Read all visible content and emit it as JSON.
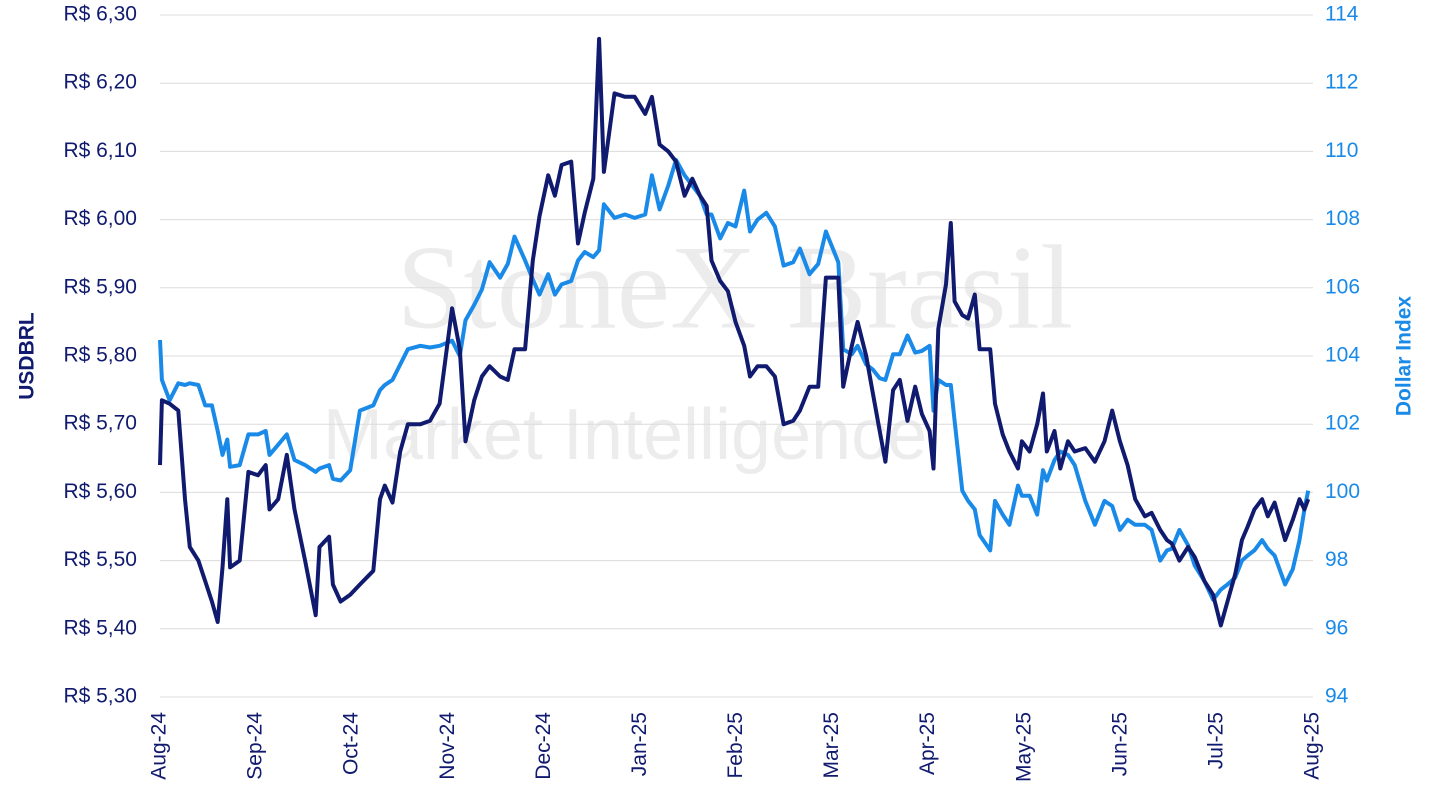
{
  "chart_data": {
    "type": "line",
    "watermark": [
      "StoneX Brasil",
      "Market Intelligence"
    ],
    "ylabel": "USDBRL",
    "y2label": "Dollar Index",
    "x": [
      0.0,
      0.02,
      0.1,
      0.19,
      0.26,
      0.31,
      0.4,
      0.47,
      0.54,
      0.6,
      0.65,
      0.7,
      0.73,
      0.83,
      0.92,
      1.02,
      1.1,
      1.14,
      1.23,
      1.32,
      1.4,
      1.51,
      1.62,
      1.66,
      1.76,
      1.8,
      1.88,
      1.98,
      2.08,
      2.22,
      2.29,
      2.34,
      2.42,
      2.5,
      2.58,
      2.71,
      2.81,
      2.91,
      3.04,
      3.12,
      3.18,
      3.27,
      3.35,
      3.43,
      3.54,
      3.62,
      3.69,
      3.8,
      3.88,
      3.95,
      4.04,
      4.11,
      4.18,
      4.28,
      4.35,
      4.42,
      4.51,
      4.57,
      4.62,
      4.73,
      4.84,
      4.94,
      5.05,
      5.12,
      5.2,
      5.29,
      5.37,
      5.46,
      5.54,
      5.62,
      5.69,
      5.74,
      5.83,
      5.91,
      5.99,
      6.08,
      6.14,
      6.22,
      6.31,
      6.4,
      6.49,
      6.59,
      6.66,
      6.76,
      6.85,
      6.93,
      7.06,
      7.11,
      7.2,
      7.26,
      7.35,
      7.42,
      7.49,
      7.55,
      7.63,
      7.7,
      7.78,
      7.86,
      7.93,
      8.01,
      8.05,
      8.1,
      8.18,
      8.23,
      8.27,
      8.35,
      8.41,
      8.48,
      8.53,
      8.64,
      8.69,
      8.77,
      8.84,
      8.93,
      8.97,
      9.05,
      9.13,
      9.19,
      9.23,
      9.31,
      9.37,
      9.45,
      9.52,
      9.63,
      9.73,
      9.83,
      9.91,
      9.99,
      10.07,
      10.15,
      10.25,
      10.32,
      10.41,
      10.48,
      10.53,
      10.61,
      10.7,
      10.77,
      10.87,
      10.96,
      11.04,
      11.11,
      11.19,
      11.26,
      11.32,
      11.39,
      11.47,
      11.53,
      11.6,
      11.71,
      11.79,
      11.86,
      11.91,
      11.95
    ],
    "xlim": [
      0,
      12
    ],
    "xticks": [
      {
        "value": 0,
        "label": "Aug-24"
      },
      {
        "value": 1,
        "label": "Sep-24"
      },
      {
        "value": 2,
        "label": "Oct-24"
      },
      {
        "value": 3,
        "label": "Nov-24"
      },
      {
        "value": 4,
        "label": "Dec-24"
      },
      {
        "value": 5,
        "label": "Jan-25"
      },
      {
        "value": 6,
        "label": "Feb-25"
      },
      {
        "value": 7,
        "label": "Mar-25"
      },
      {
        "value": 8,
        "label": "Apr-25"
      },
      {
        "value": 9,
        "label": "May-25"
      },
      {
        "value": 10,
        "label": "Jun-25"
      },
      {
        "value": 11,
        "label": "Jul-25"
      },
      {
        "value": 12,
        "label": "Aug-25"
      }
    ],
    "ylim": [
      5.3,
      6.3
    ],
    "yticks": [
      {
        "value": 5.3,
        "label": "R$ 5,30"
      },
      {
        "value": 5.4,
        "label": "R$ 5,40"
      },
      {
        "value": 5.5,
        "label": "R$ 5,50"
      },
      {
        "value": 5.6,
        "label": "R$ 5,60"
      },
      {
        "value": 5.7,
        "label": "R$ 5,70"
      },
      {
        "value": 5.8,
        "label": "R$ 5,80"
      },
      {
        "value": 5.9,
        "label": "R$ 5,90"
      },
      {
        "value": 6.0,
        "label": "R$ 6,00"
      },
      {
        "value": 6.1,
        "label": "R$ 6,10"
      },
      {
        "value": 6.2,
        "label": "R$ 6,20"
      },
      {
        "value": 6.3,
        "label": "R$ 6,30"
      }
    ],
    "y2lim": [
      94,
      114
    ],
    "y2ticks": [
      94,
      96,
      98,
      100,
      102,
      104,
      106,
      108,
      110,
      112,
      114
    ],
    "grid": true,
    "series": [
      {
        "name": "USDBRL",
        "color": "#101a6e",
        "axis": "y",
        "values": [
          5.64,
          5.735,
          5.73,
          5.72,
          5.59,
          5.52,
          5.5,
          5.47,
          5.44,
          5.41,
          5.49,
          5.59,
          5.49,
          5.5,
          5.63,
          5.625,
          5.64,
          5.575,
          5.59,
          5.655,
          5.575,
          5.5,
          5.42,
          5.52,
          5.535,
          5.465,
          5.44,
          5.45,
          5.465,
          5.485,
          5.59,
          5.61,
          5.585,
          5.66,
          5.7,
          5.7,
          5.705,
          5.73,
          5.87,
          5.81,
          5.675,
          5.735,
          5.77,
          5.785,
          5.77,
          5.765,
          5.81,
          5.81,
          5.94,
          6.005,
          6.065,
          6.035,
          6.08,
          6.085,
          5.965,
          6.01,
          6.06,
          6.265,
          6.07,
          6.185,
          6.18,
          6.18,
          6.155,
          6.18,
          6.11,
          6.1,
          6.085,
          6.035,
          6.06,
          6.035,
          6.02,
          5.94,
          5.91,
          5.895,
          5.85,
          5.815,
          5.77,
          5.785,
          5.785,
          5.77,
          5.7,
          5.705,
          5.72,
          5.755,
          5.755,
          5.915,
          5.915,
          5.755,
          5.815,
          5.85,
          5.8,
          5.745,
          5.69,
          5.645,
          5.75,
          5.765,
          5.705,
          5.755,
          5.715,
          5.69,
          5.635,
          5.84,
          5.905,
          5.995,
          5.88,
          5.86,
          5.855,
          5.89,
          5.81,
          5.81,
          5.73,
          5.685,
          5.66,
          5.635,
          5.675,
          5.66,
          5.7,
          5.745,
          5.66,
          5.69,
          5.635,
          5.675,
          5.66,
          5.665,
          5.645,
          5.675,
          5.72,
          5.675,
          5.64,
          5.59,
          5.565,
          5.57,
          5.545,
          5.53,
          5.525,
          5.5,
          5.52,
          5.505,
          5.47,
          5.45,
          5.405,
          5.44,
          5.48,
          5.53,
          5.55,
          5.575,
          5.59,
          5.565,
          5.585,
          5.53,
          5.56,
          5.59,
          5.575,
          5.59
        ]
      },
      {
        "name": "Dollar Index",
        "color": "#1a8ae8",
        "axis": "y2",
        "values": [
          104.47,
          103.3,
          102.7,
          103.2,
          103.15,
          103.2,
          103.15,
          102.55,
          102.55,
          101.8,
          101.1,
          101.55,
          100.75,
          100.8,
          101.7,
          101.7,
          101.8,
          101.1,
          101.4,
          101.7,
          100.95,
          100.8,
          100.6,
          100.7,
          100.8,
          100.4,
          100.35,
          100.65,
          102.4,
          102.55,
          103.0,
          103.15,
          103.3,
          103.75,
          104.2,
          104.3,
          104.25,
          104.3,
          104.45,
          104.0,
          105.05,
          105.5,
          105.95,
          106.75,
          106.3,
          106.7,
          107.5,
          106.8,
          106.25,
          105.8,
          106.4,
          105.8,
          106.1,
          106.2,
          106.8,
          107.05,
          106.9,
          107.1,
          108.45,
          108.05,
          108.15,
          108.05,
          108.15,
          109.3,
          108.3,
          109.0,
          109.75,
          109.3,
          109.0,
          108.7,
          108.15,
          108.15,
          107.45,
          107.9,
          107.8,
          108.85,
          107.65,
          108.0,
          108.2,
          107.8,
          106.65,
          106.75,
          107.15,
          106.4,
          106.7,
          107.65,
          106.75,
          104.2,
          104.05,
          104.3,
          103.75,
          103.6,
          103.35,
          103.3,
          104.05,
          104.05,
          104.6,
          104.1,
          104.15,
          104.3,
          102.4,
          103.3,
          103.15,
          103.15,
          102.1,
          100.05,
          99.75,
          99.5,
          98.75,
          98.3,
          99.75,
          99.35,
          99.05,
          100.2,
          99.9,
          99.9,
          99.35,
          100.65,
          100.35,
          100.95,
          101.2,
          101.1,
          100.8,
          99.75,
          99.05,
          99.75,
          99.6,
          98.9,
          99.2,
          99.05,
          99.05,
          98.9,
          98.0,
          98.3,
          98.35,
          98.9,
          98.45,
          97.85,
          97.4,
          96.85,
          97.15,
          97.3,
          97.5,
          98.0,
          98.15,
          98.3,
          98.6,
          98.35,
          98.15,
          97.3,
          97.75,
          98.6,
          99.5,
          100.05
        ]
      }
    ]
  }
}
